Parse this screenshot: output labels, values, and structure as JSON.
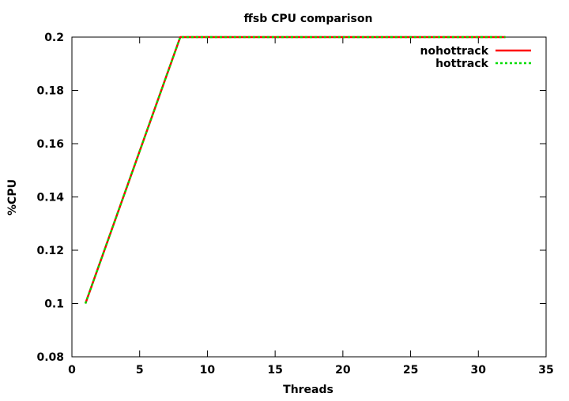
{
  "chart_data": {
    "type": "line",
    "title": "ffsb CPU comparison",
    "xlabel": "Threads",
    "ylabel": "%CPU",
    "xlim": [
      0,
      35
    ],
    "ylim": [
      0.08,
      0.2
    ],
    "xticks": [
      0,
      5,
      10,
      15,
      20,
      25,
      30,
      35
    ],
    "yticks": [
      0.08,
      0.1,
      0.12,
      0.14,
      0.16,
      0.18,
      0.2
    ],
    "xtick_labels": [
      "0",
      "5",
      "10",
      "15",
      "20",
      "25",
      "30",
      "35"
    ],
    "ytick_labels": [
      "0.08",
      "0.1",
      "0.12",
      "0.14",
      "0.16",
      "0.18",
      "0.2"
    ],
    "grid": false,
    "legend_position": "top-right",
    "series": [
      {
        "name": "nohottrack",
        "color": "#ff0000",
        "dash": "solid",
        "x": [
          1,
          8,
          16,
          32
        ],
        "y": [
          0.1,
          0.2,
          0.2,
          0.2
        ]
      },
      {
        "name": "hottrack",
        "color": "#00dd00",
        "dash": "dashed",
        "x": [
          1,
          8,
          16,
          32
        ],
        "y": [
          0.1,
          0.2,
          0.2,
          0.2
        ]
      }
    ]
  }
}
